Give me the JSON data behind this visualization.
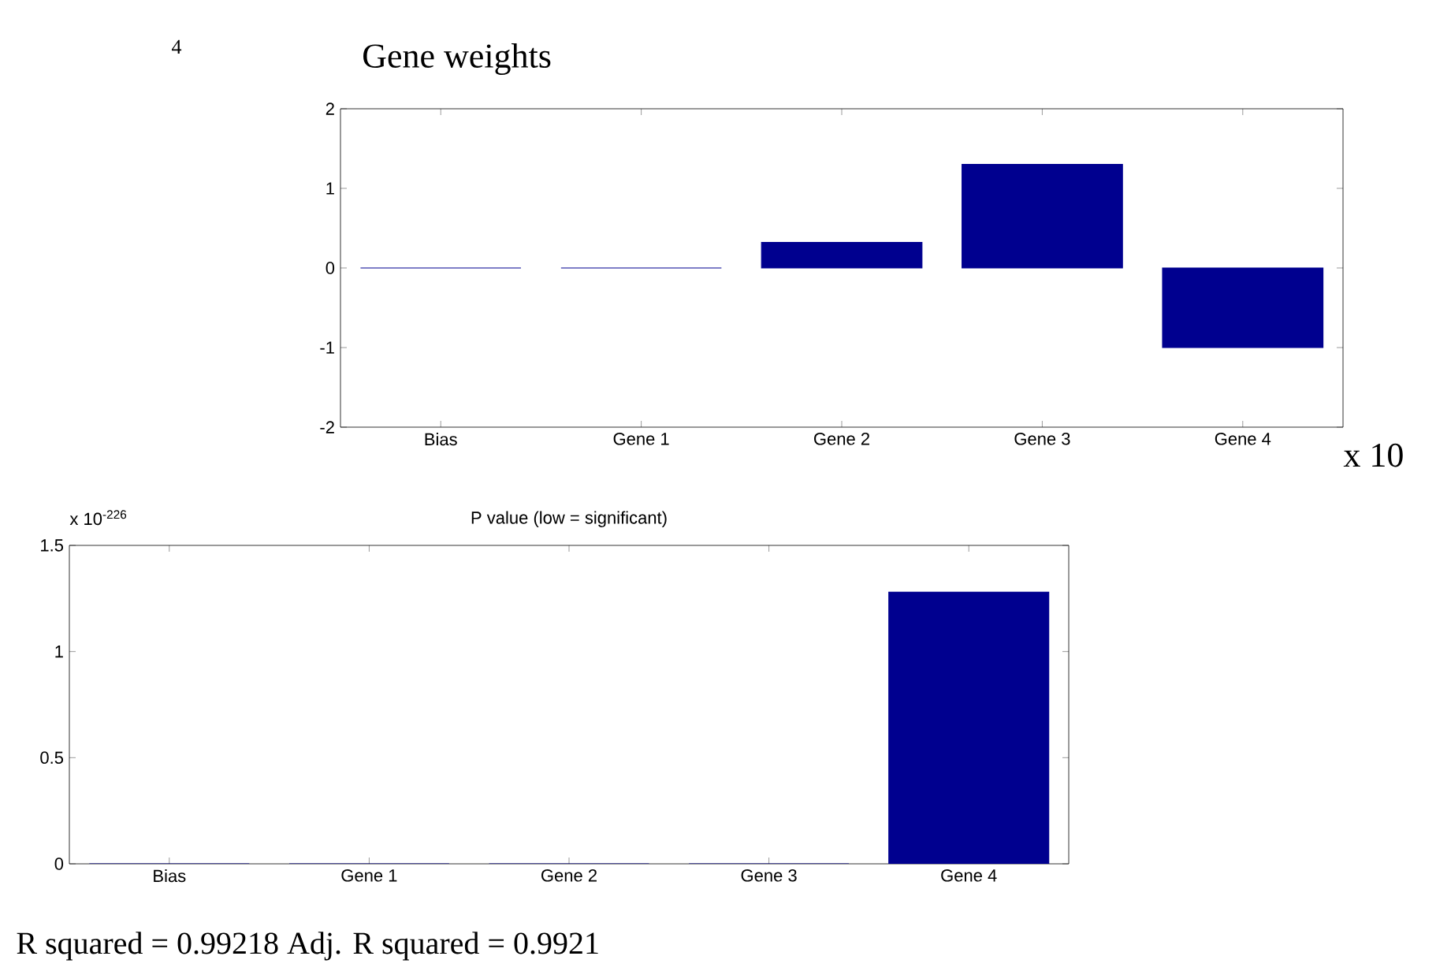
{
  "chart_data": [
    {
      "type": "bar",
      "title": "Gene weights",
      "categories": [
        "Bias",
        "Gene 1",
        "Gene 2",
        "Gene 3",
        "Gene 4"
      ],
      "values": [
        0,
        0,
        0.32,
        1.3,
        -1
      ],
      "color": "#00008f",
      "ylim": [
        -2,
        2
      ],
      "yticks": [
        -2,
        -1,
        0,
        1,
        2
      ],
      "annotations": [
        "4",
        "x 10"
      ]
    },
    {
      "type": "bar",
      "title": "P value (low = significant)",
      "categories": [
        "Bias",
        "Gene 1",
        "Gene 2",
        "Gene 3",
        "Gene 4"
      ],
      "values": [
        0,
        0,
        0,
        0,
        1.28
      ],
      "color": "#00008f",
      "ylim": [
        0,
        1.5
      ],
      "yticks": [
        0,
        0.5,
        1,
        1.5
      ],
      "annotations": [
        "x 10$^{-226}$",
        "R squared = 0.99218 Adj. R squared = 0.9921"
      ]
    }
  ]
}
